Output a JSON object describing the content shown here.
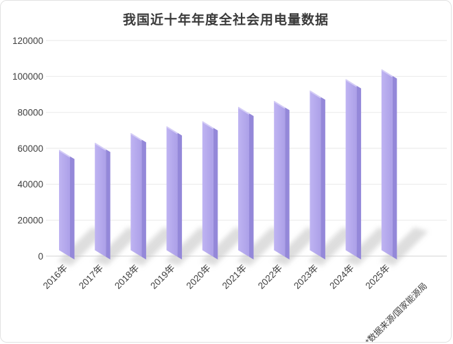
{
  "chart_data": {
    "type": "bar",
    "title": "我国近十年年度全社会用电量数据",
    "categories": [
      "2016年",
      "2017年",
      "2018年",
      "2019年",
      "2020年",
      "2021年",
      "2022年",
      "2023年",
      "2024年",
      "2025年"
    ],
    "values": [
      59200,
      63100,
      68500,
      72300,
      75100,
      83100,
      86400,
      92200,
      98500,
      104000
    ],
    "ylim": [
      0,
      120000
    ],
    "yticks": [
      0,
      20000,
      40000,
      60000,
      80000,
      100000,
      120000
    ],
    "ytick_labels": [
      "0",
      "20000",
      "40000",
      "60000",
      "80000",
      "100000",
      "120000"
    ],
    "xlabel": "",
    "ylabel": "",
    "grid": "horizontal",
    "legend": "none",
    "source_note": "*数据来源/国家能源局",
    "colors": {
      "bar_front_light": "#bfb4f2",
      "bar_front_dark": "#aca0e8",
      "bar_side": "#9488d9",
      "bar_bevel": "#d7d0f7",
      "shadow": "#c2c2c2",
      "gridline": "#ececec",
      "axis_line": "#dcdcdc",
      "tick_text": "#3f3f3f",
      "title_text": "#3a3a3a",
      "background": "#ffffff",
      "border": "#e2e2e2"
    }
  }
}
